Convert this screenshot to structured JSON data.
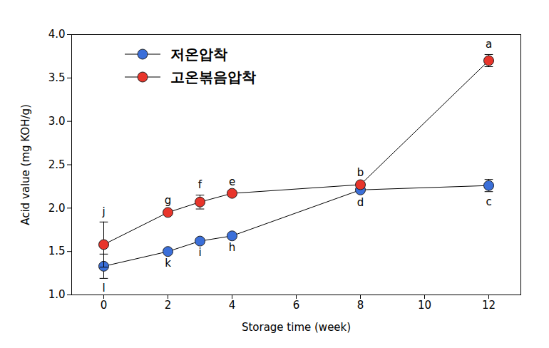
{
  "chart_data": {
    "type": "line",
    "x_label": "Storage time (week)",
    "y_label": "Acid value (mg KOH/g)",
    "x": [
      0,
      2,
      3,
      4,
      8,
      12
    ],
    "xlim": [
      -1,
      13
    ],
    "xticks": [
      0,
      2,
      4,
      6,
      8,
      10,
      12
    ],
    "ylim": [
      1,
      4
    ],
    "yticks": [
      {
        "value": 1,
        "label": "1.0"
      },
      {
        "value": 1.5,
        "label": "1.5"
      },
      {
        "value": 2,
        "label": "2.0"
      },
      {
        "value": 2.5,
        "label": "2.5"
      },
      {
        "value": 3,
        "label": "3.0"
      },
      {
        "value": 3.5,
        "label": "3.5"
      },
      {
        "value": 4,
        "label": "4.0"
      }
    ],
    "grid": false,
    "legend": "upper left",
    "marker": "circle",
    "series": [
      {
        "name": "저온압착",
        "color": "#3b6fd9",
        "values": [
          1.33,
          1.5,
          1.62,
          1.68,
          2.21,
          2.26
        ],
        "errors": [
          0.14,
          0.02,
          0.02,
          0.02,
          0.03,
          0.07
        ],
        "annotations": [
          "l",
          "k",
          "i",
          "h",
          "d",
          "c"
        ]
      },
      {
        "name": "고온볶음압착",
        "color": "#e8352b",
        "values": [
          1.58,
          1.95,
          2.07,
          2.17,
          2.27,
          3.7
        ],
        "errors": [
          0.26,
          0.02,
          0.08,
          0.02,
          0.02,
          0.07
        ],
        "annotations": [
          "j",
          "g",
          "f",
          "e",
          "b",
          "a"
        ]
      }
    ]
  }
}
